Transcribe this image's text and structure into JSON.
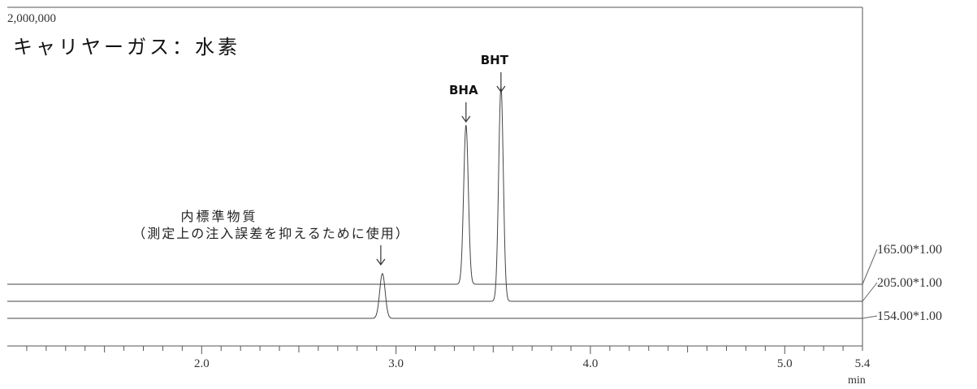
{
  "chart_data": {
    "type": "line",
    "y_max_label": "2,000,000",
    "title": "キャリヤーガス：水素",
    "xlabel": "min",
    "xlim": [
      1.0,
      5.4
    ],
    "x_ticks": [
      {
        "value": 2.0,
        "label": "2.0"
      },
      {
        "value": 3.0,
        "label": "3.0"
      },
      {
        "value": 4.0,
        "label": "4.0"
      },
      {
        "value": 5.0,
        "label": "5.0"
      },
      {
        "value": 5.4,
        "label": "5.4"
      }
    ],
    "series": [
      {
        "name": "165.00*1.00",
        "baseline_rank": 0,
        "peaks": [
          {
            "x": 3.36,
            "height": 0.49,
            "width": 0.012
          }
        ]
      },
      {
        "name": "205.00*1.00",
        "baseline_rank": 1,
        "peaks": [
          {
            "x": 3.54,
            "height": 0.66,
            "width": 0.012
          }
        ]
      },
      {
        "name": "154.00*1.00",
        "baseline_rank": 2,
        "peaks": [
          {
            "x": 2.93,
            "height": 0.138,
            "width": 0.014
          }
        ]
      }
    ],
    "annotations": [
      {
        "id": "bha",
        "text": "BHA",
        "x": 3.36
      },
      {
        "id": "bht",
        "text": "BHT",
        "x": 3.54
      },
      {
        "id": "internal-standard",
        "text_line1": "内標準物質",
        "text_line2": "（測定上の注入誤差を抑えるために使用）",
        "x": 2.93
      }
    ]
  }
}
